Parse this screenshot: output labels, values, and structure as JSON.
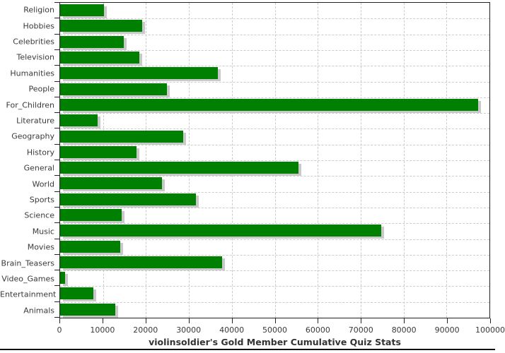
{
  "chart_data": {
    "type": "bar",
    "orientation": "horizontal",
    "title": "violinsoldier's Gold Member Cumulative Quiz Stats",
    "categories": [
      "Religion",
      "Hobbies",
      "Celebrities",
      "Television",
      "Humanities",
      "People",
      "For_Children",
      "Literature",
      "Geography",
      "History",
      "General",
      "World",
      "Sports",
      "Science",
      "Music",
      "Movies",
      "Brain_Teasers",
      "Video_Games",
      "Entertainment",
      "Animals"
    ],
    "values": [
      10200,
      19100,
      14900,
      18400,
      36800,
      24900,
      97300,
      8700,
      28600,
      17800,
      55500,
      23700,
      31700,
      14300,
      74800,
      14000,
      37800,
      1100,
      7800,
      12800
    ],
    "xlim": [
      0,
      100000
    ],
    "xticks": [
      0,
      10000,
      20000,
      30000,
      40000,
      50000,
      60000,
      70000,
      80000,
      90000,
      100000
    ],
    "xtick_labels": [
      "0",
      "10000",
      "20000",
      "30000",
      "40000",
      "50000",
      "60000",
      "70000",
      "80000",
      "90000",
      "100000"
    ],
    "ylabel": "",
    "xlabel": "",
    "legend_position": "none",
    "grid": "dashed, both axes",
    "colors": {
      "bar": "#008000",
      "bar_shadow": "#c9c9c9",
      "grid": "#cccccc",
      "axis": "#222222",
      "label": "#3a3a3a",
      "title": "#333333"
    }
  }
}
